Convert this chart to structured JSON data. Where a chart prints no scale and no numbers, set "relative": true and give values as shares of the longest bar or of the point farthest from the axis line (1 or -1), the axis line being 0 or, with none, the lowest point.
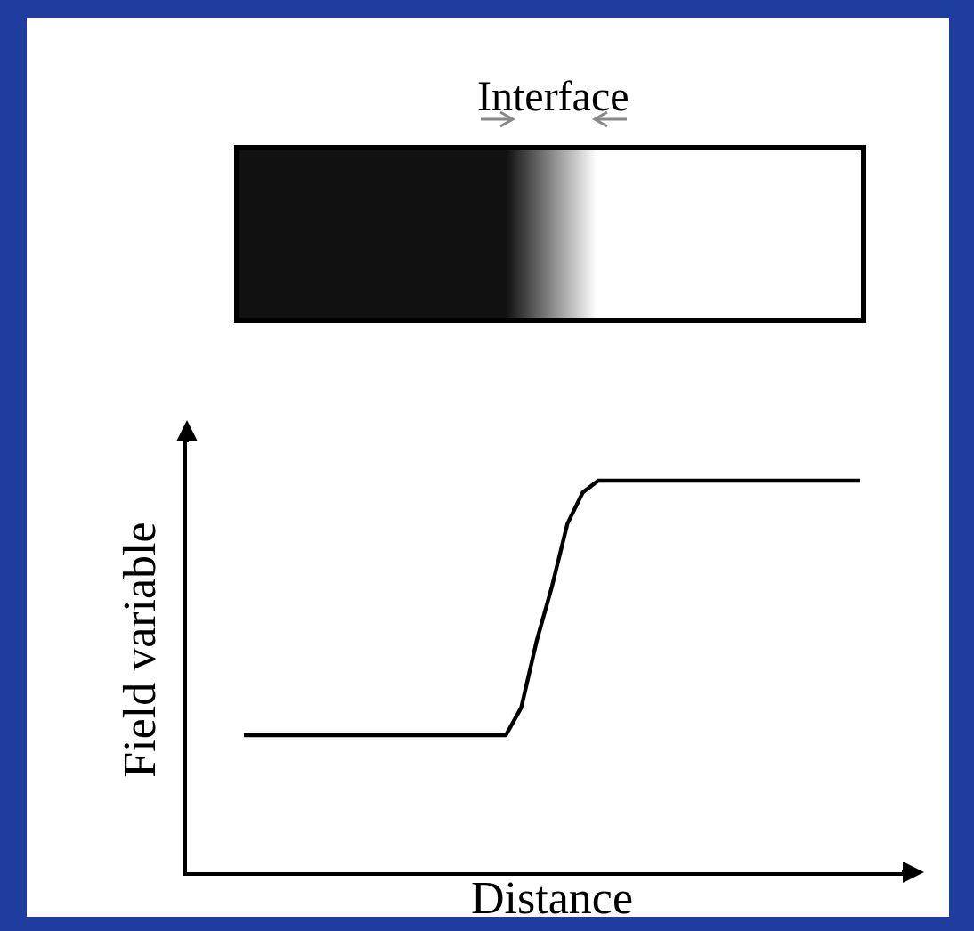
{
  "chart_data": {
    "type": "line",
    "relative": true,
    "categories": [
      null,
      null,
      null,
      null,
      null,
      null,
      null,
      null,
      null,
      null,
      null,
      null,
      null,
      null,
      null,
      null,
      null,
      null,
      null,
      null,
      null,
      null,
      null,
      null,
      null,
      null,
      null,
      null,
      null,
      null,
      null,
      null,
      null,
      null,
      null,
      null,
      null,
      null,
      null,
      null,
      null
    ],
    "series": [
      {
        "color": "#000000",
        "values": [
          0.35,
          0.35,
          0.35,
          0.35,
          0.35,
          0.35,
          0.35,
          0.35,
          0.35,
          0.35,
          0.35,
          0.35,
          0.35,
          0.35,
          0.35,
          0.35,
          0.35,
          0.35,
          0.42,
          0.59,
          0.73,
          0.89,
          0.97,
          1,
          1,
          1,
          1,
          1,
          1,
          1,
          1,
          1,
          1,
          1,
          1,
          1,
          1,
          1,
          1,
          1,
          1
        ]
      }
    ],
    "xlabel": "Distance",
    "ylabel": "Field variable",
    "annotations": [
      "Interface"
    ],
    "grid": false,
    "legend": false,
    "tick_labels": false,
    "marker": "none",
    "line_style": "solid"
  }
}
